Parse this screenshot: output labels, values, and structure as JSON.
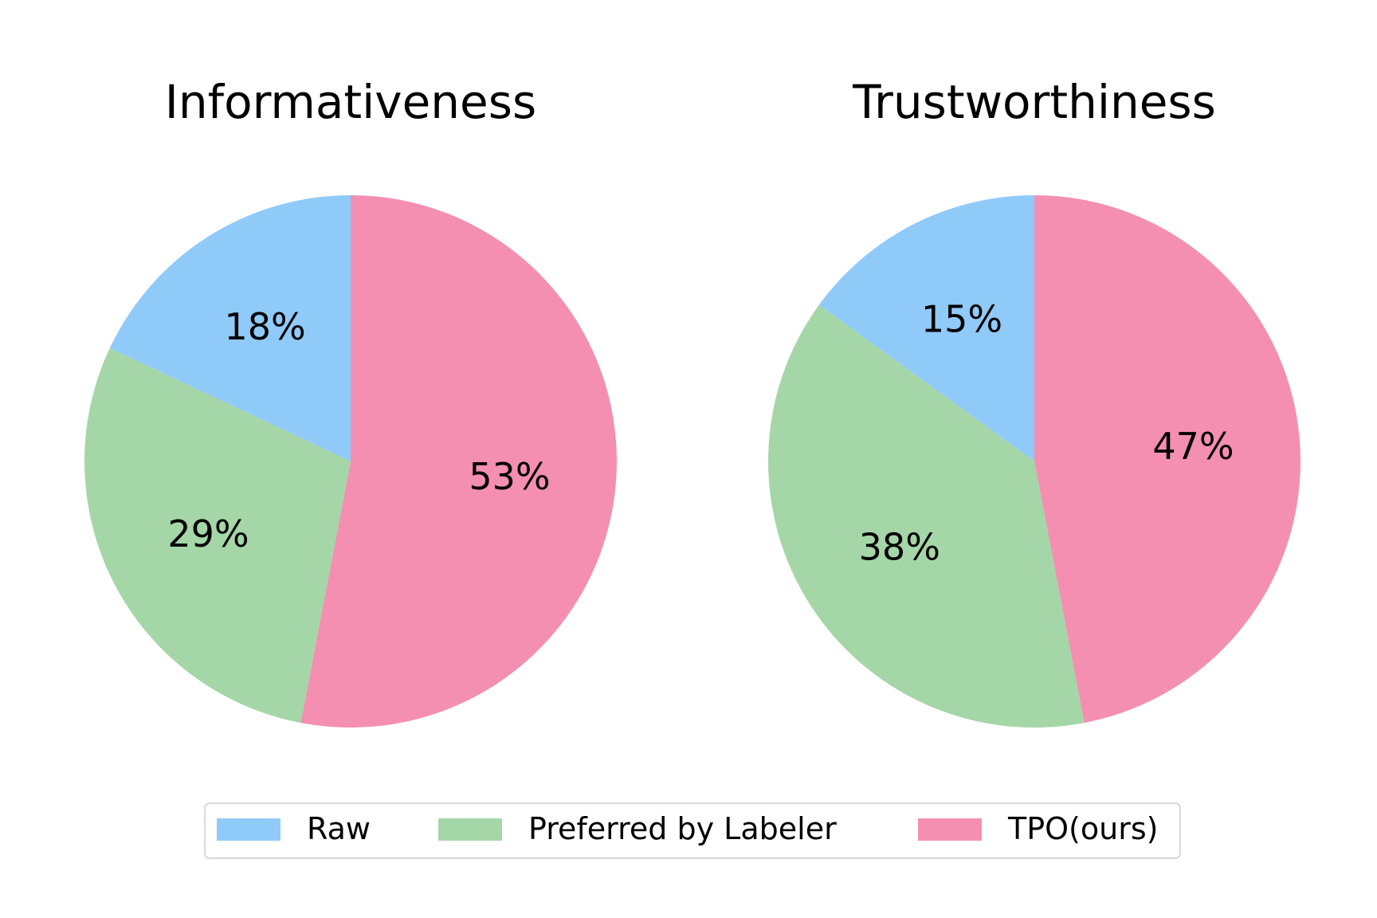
{
  "chart_data": [
    {
      "type": "pie",
      "title": "Informativeness",
      "slices": [
        {
          "label": "Raw",
          "value": 18,
          "display": "18%",
          "color": "#90CAF9"
        },
        {
          "label": "Preferred by Labeler",
          "value": 29,
          "display": "29%",
          "color": "#A5D6A7"
        },
        {
          "label": "TPO(ours)",
          "value": 53,
          "display": "53%",
          "color": "#F48FB1"
        }
      ],
      "start_angle_deg": 90,
      "direction": "counterclockwise"
    },
    {
      "type": "pie",
      "title": "Trustworthiness",
      "slices": [
        {
          "label": "Raw",
          "value": 15,
          "display": "15%",
          "color": "#90CAF9"
        },
        {
          "label": "Preferred by Labeler",
          "value": 38,
          "display": "38%",
          "color": "#A5D6A7"
        },
        {
          "label": "TPO(ours)",
          "value": 47,
          "display": "47%",
          "color": "#F48FB1"
        }
      ],
      "start_angle_deg": 90,
      "direction": "counterclockwise"
    }
  ],
  "legend": {
    "placement": "bottom-center",
    "entries": [
      {
        "label": "Raw",
        "color": "#90CAF9"
      },
      {
        "label": "Preferred by Labeler",
        "color": "#A5D6A7"
      },
      {
        "label": "TPO(ours)",
        "color": "#F48FB1"
      }
    ]
  }
}
